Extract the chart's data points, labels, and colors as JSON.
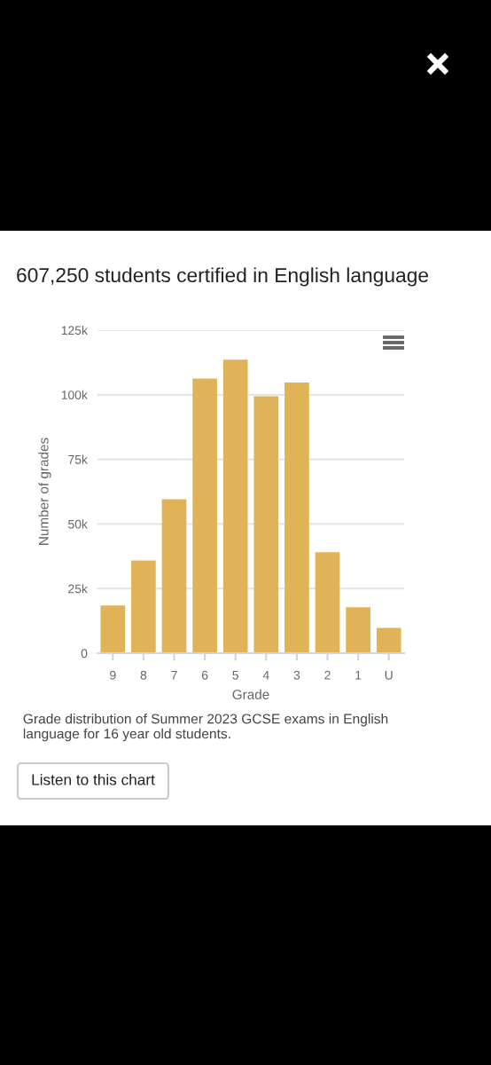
{
  "chart_data": {
    "type": "bar",
    "title": "607,250 students certified in English language",
    "categories": [
      "9",
      "8",
      "7",
      "6",
      "5",
      "4",
      "3",
      "2",
      "1",
      "U"
    ],
    "values": [
      18500,
      35900,
      59600,
      106300,
      113600,
      99400,
      104700,
      39100,
      17800,
      9800
    ],
    "color": "#e0b358",
    "xlabel": "Grade",
    "ylabel": "Number of grades",
    "ylim": [
      0,
      125000
    ],
    "yticks": [
      {
        "value": 0,
        "label": "0"
      },
      {
        "value": 25000,
        "label": "25k"
      },
      {
        "value": 50000,
        "label": "50k"
      },
      {
        "value": 75000,
        "label": "75k"
      },
      {
        "value": 100000,
        "label": "100k"
      },
      {
        "value": 125000,
        "label": "125k"
      }
    ],
    "grid": "y",
    "annotations": [
      "Grade distribution of Summer 2023 GCSE exams in English language for 16 year old students.",
      "Listen to this chart"
    ]
  }
}
